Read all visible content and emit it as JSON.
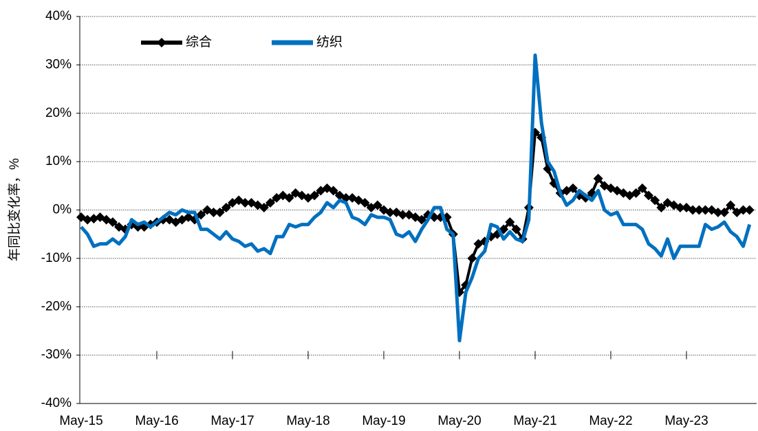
{
  "chart_data": {
    "type": "line",
    "y_label": "年同比变化率，%",
    "categories": [
      "May-15",
      null,
      null,
      null,
      null,
      null,
      null,
      null,
      null,
      null,
      null,
      null,
      "May-16",
      null,
      null,
      null,
      null,
      null,
      null,
      null,
      null,
      null,
      null,
      null,
      "May-17",
      null,
      null,
      null,
      null,
      null,
      null,
      null,
      null,
      null,
      null,
      null,
      "May-18",
      null,
      null,
      null,
      null,
      null,
      null,
      null,
      null,
      null,
      null,
      null,
      "May-19",
      null,
      null,
      null,
      null,
      null,
      null,
      null,
      null,
      null,
      null,
      null,
      "May-20",
      null,
      null,
      null,
      null,
      null,
      null,
      null,
      null,
      null,
      null,
      null,
      "May-21",
      null,
      null,
      null,
      null,
      null,
      null,
      null,
      null,
      null,
      null,
      null,
      "May-22",
      null,
      null,
      null,
      null,
      null,
      null,
      null,
      null,
      null,
      null,
      null,
      "May-23",
      null,
      null,
      null,
      null,
      null,
      null,
      null,
      null,
      null,
      null
    ],
    "series": [
      {
        "name": "综合",
        "color": "#000000",
        "marker": "diamond",
        "values": [
          -1.5,
          -2,
          -1.8,
          -1.5,
          -2,
          -2.5,
          -3.5,
          -4,
          -3,
          -3.5,
          -3.5,
          -3,
          -2.5,
          -2,
          -2,
          -2.5,
          -2,
          -1.5,
          -2,
          -1,
          0,
          -0.5,
          -0.5,
          0.5,
          1.5,
          2,
          1.5,
          1.5,
          1,
          0.5,
          1.5,
          2.5,
          3,
          2.5,
          3.5,
          3,
          2.5,
          3,
          4,
          4.5,
          4,
          3,
          2.5,
          2.5,
          2,
          1.5,
          0.5,
          1,
          0,
          -0.5,
          -0.5,
          -1,
          -1,
          -1.5,
          -2,
          -1,
          -1.5,
          -1.5,
          -1.5,
          -5,
          -17,
          -15.5,
          -10,
          -7,
          -6.5,
          -5.5,
          -5,
          -4,
          -2.5,
          -4,
          -6,
          0.5,
          16,
          15,
          8.5,
          5.5,
          3.5,
          4,
          4.5,
          3,
          2.5,
          3.5,
          6.5,
          5,
          4.5,
          4,
          3.5,
          3,
          3.5,
          4.5,
          3,
          2,
          0.5,
          1.5,
          1,
          0.5,
          0.5,
          0,
          0,
          0,
          0,
          -0.5,
          -0.5,
          1,
          -0.5,
          0,
          0
        ]
      },
      {
        "name": "纺织",
        "color": "#0070c0",
        "values": [
          -3.5,
          -5,
          -7.5,
          -7,
          -7,
          -6,
          -7,
          -5.5,
          -2,
          -3,
          -2.5,
          -3.5,
          -2.5,
          -1.5,
          -0.5,
          -1,
          0,
          -0.5,
          -0.5,
          -4,
          -4,
          -5,
          -6,
          -4.5,
          -6,
          -6.5,
          -7.5,
          -7,
          -8.5,
          -8,
          -9,
          -5.5,
          -5.5,
          -3,
          -3.5,
          -3,
          -3,
          -1.5,
          -0.5,
          1.5,
          0.5,
          2,
          1.5,
          -1.5,
          -2,
          -3,
          -1,
          -1.5,
          -1.5,
          -2,
          -5,
          -5.5,
          -4.5,
          -6.5,
          -4,
          -2,
          0.5,
          0.5,
          -4,
          -5,
          -27,
          -17,
          -14,
          -10,
          -8.5,
          -3,
          -3.5,
          -6,
          -4.5,
          -6,
          -6.5,
          -2,
          32,
          18,
          10,
          8,
          3.5,
          1,
          2,
          4,
          3,
          2,
          4,
          0,
          -1,
          -0.5,
          -3,
          -3,
          -3,
          -4,
          -7,
          -8,
          -9.5,
          -6,
          -10,
          -7.5,
          -7.5,
          -7.5,
          -7.5,
          -3,
          -4,
          -3.5,
          -2.5,
          -4.5,
          -5.5,
          -7.5,
          -3
        ]
      }
    ],
    "ylim": [
      -40,
      40
    ],
    "yticks": [
      {
        "value": -40,
        "label": "-40%"
      },
      {
        "value": -30,
        "label": "-30%"
      },
      {
        "value": -20,
        "label": "-20%"
      },
      {
        "value": -10,
        "label": "-10%"
      },
      {
        "value": 0,
        "label": "0%"
      },
      {
        "value": 10,
        "label": "10%"
      },
      {
        "value": 20,
        "label": "20%"
      },
      {
        "value": 30,
        "label": "30%"
      },
      {
        "value": 40,
        "label": "40%"
      }
    ],
    "grid": true,
    "legend": "top-left"
  }
}
